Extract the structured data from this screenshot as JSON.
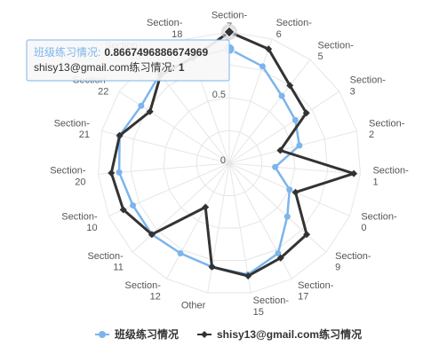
{
  "chart_data": {
    "type": "polar-line",
    "categories": [
      "Section-7",
      "Section-6",
      "Section-5",
      "Section-3",
      "Section-2",
      "Section-1",
      "Section-0",
      "Section-9",
      "Section-17",
      "Section-15",
      "Other",
      "Section-12",
      "Section-11",
      "Section-10",
      "Section-20",
      "Section-21",
      "Section-22",
      "Section-23",
      "Section-18"
    ],
    "ylim": [
      0,
      1
    ],
    "yticks": [
      0,
      0.5
    ],
    "ytick_labels": [
      "0",
      "0.5"
    ],
    "grid": true,
    "legend_position": "bottom",
    "series": [
      {
        "name": "班级练习情况",
        "color": "#7cb5ec",
        "marker": "circle",
        "values": [
          0.87,
          0.78,
          0.65,
          0.6,
          0.55,
          0.35,
          0.5,
          0.6,
          0.78,
          0.86,
          0.8,
          0.78,
          0.8,
          0.8,
          0.84,
          0.86,
          0.8,
          0.86,
          0.85
        ]
      },
      {
        "name": "shisy13@gmail.com练习情况",
        "color": "#333333",
        "marker": "diamond",
        "values": [
          1,
          0.92,
          0.75,
          0.7,
          0.4,
          0.95,
          0.55,
          0.8,
          0.82,
          0.87,
          0.8,
          0.38,
          0.8,
          0.88,
          0.9,
          0.86,
          0.72,
          0.85,
          0.85
        ]
      }
    ],
    "tooltip": {
      "line1_label": "班级练习情况:",
      "line1_value": "0.8667496886674969",
      "line2_label": "shisy13@gmail.com练习情况:",
      "line2_value": "1"
    }
  }
}
